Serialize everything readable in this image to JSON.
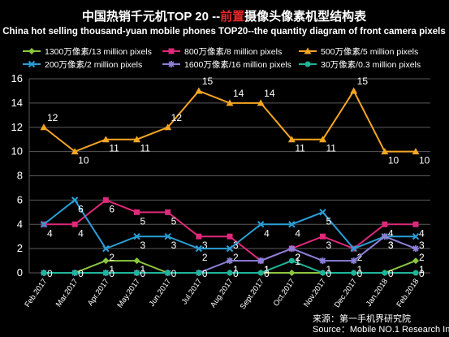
{
  "chart_data": {
    "type": "line",
    "title_prefix": "中国热销千元机TOP 20 --",
    "title_highlight": "前置",
    "title_suffix": "摄像头像素机型结构表",
    "subtitle": "China hot selling thousand-yuan mobile phones TOP20--the quantity diagram of front camera pixels",
    "source_line1": "来源：第一手机界研究院",
    "source_line2": "Source：Mobile NO.1 Research Institute",
    "categories": [
      "Feb.2017",
      "Mar.2017",
      "Apr.2017",
      "May.2017",
      "Jun.2017",
      "Jul.2017",
      "Aug.2017",
      "Sept.2017",
      "Oct.2017",
      "Nov.2017",
      "Dec.2017",
      "Jan.2018",
      "Feb.2018"
    ],
    "ylim": [
      0,
      16
    ],
    "yticks": [
      0,
      2,
      4,
      6,
      8,
      10,
      12,
      14,
      16
    ],
    "grid": true,
    "legend_position": "top",
    "colors": {
      "background": "#000000",
      "title_highlight": "#e8282a",
      "text": "#ffffff",
      "grid": "#5a5a5a"
    },
    "series": [
      {
        "name": "1300万像素/13 million pixels",
        "color": "#8cc63f",
        "marker": "diamond",
        "values": [
          0,
          0,
          1,
          1,
          0,
          0,
          0,
          0,
          0,
          0,
          0,
          0,
          1
        ],
        "labels": [
          null,
          null,
          "1",
          "1",
          null,
          null,
          null,
          null,
          null,
          null,
          null,
          null,
          "1"
        ]
      },
      {
        "name": "800万像素/8 million pixels",
        "color": "#e0287a",
        "marker": "square",
        "values": [
          4,
          4,
          6,
          5,
          5,
          3,
          3,
          1,
          2,
          3,
          2,
          4,
          4
        ],
        "labels": [
          "4",
          "4",
          "6",
          "5",
          "5",
          "3",
          "3",
          "1",
          "2",
          "3",
          "2",
          "4",
          "4"
        ]
      },
      {
        "name": "500万像素/5 million pixels",
        "color": "#f5a623",
        "marker": "triangle",
        "values": [
          12,
          10,
          11,
          11,
          12,
          15,
          14,
          14,
          11,
          11,
          15,
          10,
          10
        ],
        "labels": [
          "12",
          "10",
          "11",
          "11",
          "12",
          "15",
          "14",
          "14",
          "11",
          "11",
          "15",
          "10",
          "10"
        ]
      },
      {
        "name": "200万像素/2 million pixels",
        "color": "#2a9fd6",
        "marker": "x",
        "values": [
          4,
          6,
          2,
          3,
          3,
          2,
          2,
          4,
          4,
          5,
          2,
          3,
          3
        ],
        "labels": [
          null,
          "6",
          "2",
          "3",
          "3",
          "2",
          "2",
          "4",
          "4",
          "5",
          null,
          "3",
          "3"
        ]
      },
      {
        "name": "1600万像素/16 million pixels",
        "color": "#8b7fd6",
        "marker": "star",
        "values": [
          0,
          0,
          0,
          0,
          0,
          0,
          1,
          1,
          2,
          1,
          1,
          3,
          2
        ],
        "labels": [
          null,
          null,
          null,
          null,
          null,
          null,
          "1",
          "1",
          "2",
          "1",
          "1",
          "3",
          "2"
        ]
      },
      {
        "name": "30万像素/0.3 million pixels",
        "color": "#1fb59a",
        "marker": "circle",
        "values": [
          0,
          0,
          0,
          0,
          0,
          0,
          0,
          0,
          1,
          0,
          0,
          0,
          0
        ],
        "labels": [
          "0",
          "0",
          "0",
          "0",
          "0",
          "0",
          "0",
          "0",
          "1",
          "0",
          "0",
          "0",
          "0"
        ]
      }
    ]
  }
}
